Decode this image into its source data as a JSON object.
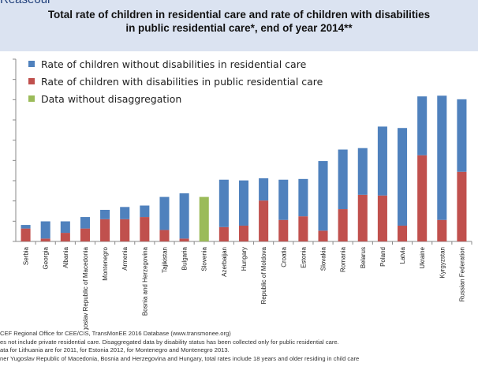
{
  "top_text": "Reaseour",
  "chart_data": {
    "type": "bar",
    "stacked": true,
    "title": "Total rate of children in residential care and rate of children with disabilities in public residential care*, end of year 2014**",
    "title_lines": [
      "Total rate of children in residential care and rate of children with disabilities",
      "in public residential care*, end of year 2014**"
    ],
    "legend_position": "top-left",
    "grid": false,
    "ylim": [
      0,
      1000
    ],
    "categories": [
      "Serbia",
      "Georgia",
      "Albania",
      "The former Yugoslav Republic of Macedonia",
      "Montenegro",
      "Armenia",
      "Bosnia and Herzegovina",
      "Tajikistan",
      "Bulgaria",
      "Slovenia",
      "Azerbaijan",
      "Hungary",
      "Republic of Moldova",
      "Croatia",
      "Estonia",
      "Slovakia",
      "Romania",
      "Belarus",
      "Poland",
      "Latvia",
      "Ukraine",
      "Kyrgyzstan",
      "Russian Federation"
    ],
    "series": [
      {
        "name": "Rate of children with disabilities in public residential care",
        "color": "#c0504d",
        "values": [
          90,
          20,
          60,
          90,
          155,
          155,
          170,
          80,
          20,
          0,
          100,
          110,
          285,
          150,
          175,
          75,
          225,
          325,
          320,
          110,
          600,
          150,
          485
        ]
      },
      {
        "name": "Rate of children without disabilities in residential care",
        "color": "#4f81bd",
        "values": [
          25,
          120,
          80,
          80,
          65,
          85,
          80,
          230,
          315,
          0,
          330,
          315,
          155,
          280,
          260,
          485,
          415,
          325,
          480,
          680,
          410,
          865,
          505
        ]
      },
      {
        "name": "Data without disaggregation",
        "color": "#9bbb59",
        "values": [
          0,
          0,
          0,
          0,
          0,
          0,
          0,
          0,
          0,
          310,
          0,
          0,
          0,
          0,
          0,
          0,
          0,
          0,
          0,
          0,
          0,
          0,
          0
        ]
      }
    ],
    "legend_order": [
      1,
      0,
      2
    ]
  },
  "notes": [
    "CEF Regional Office for CEE/CIS, TransMonEE 2016 Database (www.transmonee.org)",
    "es not include private residential care. Disaggregated data by disability status has been collected only for public residential care.",
    "ata for Lithuania are for 2011, for Estonia 2012, for Montenegro and Montenegro 2013.",
    "ner Yugoslav Republic of Macedonia, Bosnia and Herzegovina and Hungary, total rates include 18 years and older residing in child care"
  ]
}
